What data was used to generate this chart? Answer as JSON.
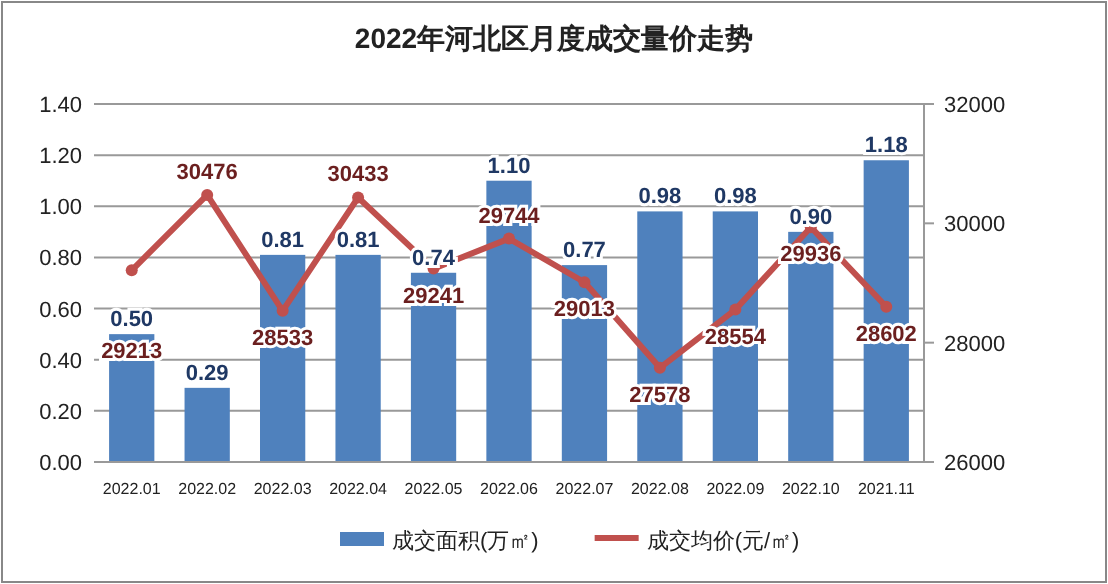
{
  "chart_data": {
    "type": "bar",
    "title": "2022年河北区月度成交量价走势",
    "categories": [
      "2022.01",
      "2022.02",
      "2022.03",
      "2022.04",
      "2022.05",
      "2022.06",
      "2022.07",
      "2022.08",
      "2022.09",
      "2022.10",
      "2021.11"
    ],
    "series": [
      {
        "name": "成交面积(万㎡)",
        "color": "#4f81bd",
        "values": [
          0.5,
          0.29,
          0.81,
          0.81,
          0.74,
          1.1,
          0.77,
          0.98,
          0.98,
          0.9,
          1.18
        ],
        "value_labels": [
          "0.50",
          "0.29",
          "0.81",
          "0.81",
          "0.74",
          "1.10",
          "0.77",
          "0.98",
          "0.98",
          "0.90",
          "1.18"
        ]
      },
      {
        "name": "成交均价(元/㎡)",
        "type": "line",
        "axis": "y2",
        "color": "#c0504d",
        "values": [
          29213,
          30476,
          28533,
          30433,
          29241,
          29744,
          29013,
          27578,
          28554,
          29936,
          28602
        ]
      }
    ],
    "ylim": [
      0,
      1.4
    ],
    "yticks": [
      {
        "value": 0,
        "label": "0.00"
      },
      {
        "value": 0.2,
        "label": "0.20"
      },
      {
        "value": 0.4,
        "label": "0.40"
      },
      {
        "value": 0.6,
        "label": "0.60"
      },
      {
        "value": 0.8,
        "label": "0.80"
      },
      {
        "value": 1.0,
        "label": "1.00"
      },
      {
        "value": 1.2,
        "label": "1.20"
      },
      {
        "value": 1.4,
        "label": "1.40"
      }
    ],
    "y2lim": [
      26000,
      32000
    ],
    "y2ticks": [
      26000,
      28000,
      30000,
      32000
    ],
    "grid": "y",
    "legend": "bottom",
    "data_labels": true,
    "marker": "circle",
    "line_style": "solid"
  }
}
